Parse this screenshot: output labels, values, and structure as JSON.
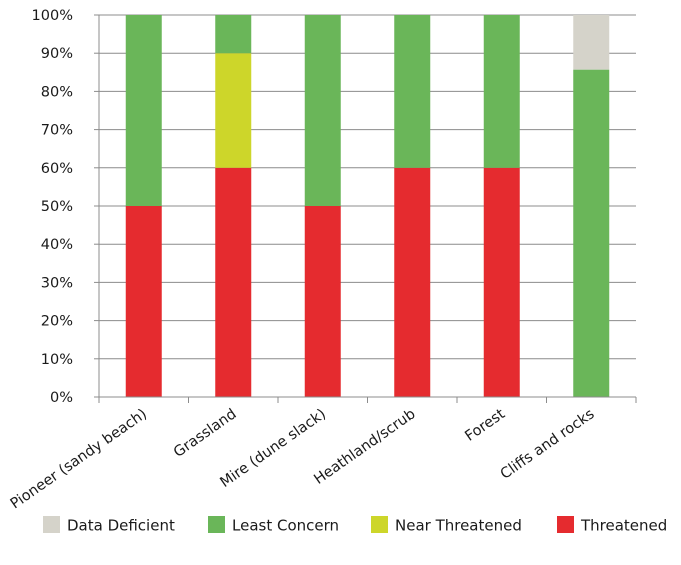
{
  "chart_data": {
    "type": "bar",
    "stacked": true,
    "percent": true,
    "categories": [
      "Pioneer (sandy beach)",
      "Grassland",
      "Mire (dune slack)",
      "Heathland/scrub",
      "Forest",
      "Cliffs and rocks"
    ],
    "series": [
      {
        "name": "Threatened",
        "color": "#e52b2f",
        "values": [
          50,
          60,
          50,
          60,
          60,
          0
        ]
      },
      {
        "name": "Near Threatened",
        "color": "#cdd62a",
        "values": [
          0,
          30,
          0,
          0,
          0,
          0
        ]
      },
      {
        "name": "Least Concern",
        "color": "#6ab659",
        "values": [
          50,
          10,
          50,
          40,
          40,
          85.7
        ]
      },
      {
        "name": "Data Deficient",
        "color": "#d5d3ca",
        "values": [
          0,
          0,
          0,
          0,
          0,
          14.3
        ]
      }
    ],
    "legend_order": [
      "Data Deficient",
      "Least Concern",
      "Near Threatened",
      "Threatened"
    ],
    "y_ticks": [
      "0%",
      "10%",
      "20%",
      "30%",
      "40%",
      "50%",
      "60%",
      "70%",
      "80%",
      "90%",
      "100%"
    ],
    "ylim": [
      0,
      100
    ],
    "grid": true,
    "legend_position": "bottom"
  }
}
